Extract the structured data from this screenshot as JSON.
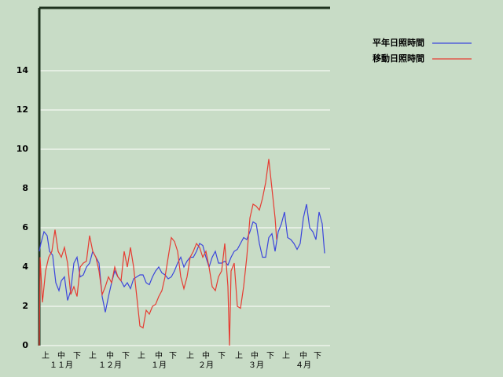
{
  "chart_data": {
    "type": "line",
    "xlim": [
      0,
      185
    ],
    "ylim": [
      0,
      17.2
    ],
    "yticks": [
      0,
      2,
      4,
      6,
      8,
      10,
      12,
      14
    ],
    "xticks": [
      {
        "value": 4,
        "label": "上"
      },
      {
        "value": 14,
        "label": "中"
      },
      {
        "value": 24,
        "label": "下"
      },
      {
        "value": 34,
        "label": "上"
      },
      {
        "value": 45,
        "label": "中"
      },
      {
        "value": 55,
        "label": "下"
      },
      {
        "value": 65,
        "label": "上"
      },
      {
        "value": 76,
        "label": "中"
      },
      {
        "value": 85,
        "label": "下"
      },
      {
        "value": 96,
        "label": "上"
      },
      {
        "value": 106,
        "label": "中"
      },
      {
        "value": 116,
        "label": "下"
      },
      {
        "value": 127,
        "label": "上"
      },
      {
        "value": 137,
        "label": "中"
      },
      {
        "value": 147,
        "label": "下"
      },
      {
        "value": 157,
        "label": "上"
      },
      {
        "value": 168,
        "label": "中"
      },
      {
        "value": 177,
        "label": "下"
      }
    ],
    "x_group_ticks": [
      {
        "value": 14,
        "label": "１１月"
      },
      {
        "value": 45,
        "label": "１２月"
      },
      {
        "value": 76,
        "label": "１月"
      },
      {
        "value": 106,
        "label": "２月"
      },
      {
        "value": 138,
        "label": "３月"
      },
      {
        "value": 168,
        "label": "４月"
      }
    ],
    "grid": true,
    "legend": "top-right",
    "series": [
      {
        "name": "平年日照時間",
        "color": "#3c46dc",
        "x": [
          0,
          1,
          3,
          5,
          6.5,
          8.5,
          10.5,
          12.5,
          14,
          16,
          18,
          20,
          22,
          24,
          26,
          28,
          30,
          32,
          34,
          36,
          38,
          40,
          42,
          44,
          46,
          48,
          50,
          52,
          54,
          56,
          58,
          60,
          62,
          64,
          66,
          68,
          70,
          72,
          74,
          76,
          78,
          80,
          82,
          84,
          86,
          88,
          90,
          92,
          94,
          96,
          98,
          100,
          102,
          104,
          106,
          108,
          110,
          112,
          114,
          116,
          118,
          120,
          122,
          124,
          126,
          128,
          130,
          132,
          134,
          136,
          138,
          140,
          142,
          144,
          146,
          148,
          150,
          152,
          154,
          156,
          158,
          160,
          162,
          164,
          166,
          168,
          170,
          172,
          174,
          176,
          178,
          180,
          181.5
        ],
        "values": [
          4.8,
          5.2,
          5.8,
          5.6,
          4.8,
          4.6,
          3.2,
          2.8,
          3.3,
          3.5,
          2.3,
          2.8,
          4.2,
          4.5,
          3.5,
          3.6,
          4.0,
          4.2,
          4.8,
          4.5,
          4.2,
          2.5,
          1.7,
          2.5,
          3.2,
          3.8,
          3.5,
          3.3,
          3.0,
          3.2,
          2.9,
          3.4,
          3.5,
          3.6,
          3.6,
          3.2,
          3.1,
          3.5,
          3.8,
          4.0,
          3.7,
          3.6,
          3.4,
          3.5,
          3.8,
          4.2,
          4.5,
          4.0,
          4.3,
          4.5,
          4.5,
          4.8,
          5.2,
          5.1,
          4.5,
          4.0,
          4.5,
          4.8,
          4.2,
          4.2,
          4.3,
          4.1,
          4.5,
          4.8,
          4.9,
          5.2,
          5.5,
          5.4,
          5.8,
          6.3,
          6.2,
          5.2,
          4.5,
          4.5,
          5.5,
          5.7,
          4.8,
          5.8,
          6.2,
          6.8,
          5.5,
          5.4,
          5.2,
          4.9,
          5.2,
          6.5,
          7.2,
          6.0,
          5.8,
          5.4,
          6.8,
          6.2,
          4.7
        ]
      },
      {
        "name": "移動日照時間",
        "color": "#e63c32",
        "x": [
          0,
          0.5,
          2,
          4,
          6,
          8,
          10,
          12,
          14,
          16,
          18,
          20,
          22,
          24,
          26,
          28,
          30,
          32,
          34,
          36,
          38,
          40,
          42,
          44,
          46,
          48,
          50,
          52,
          54,
          56,
          58,
          60,
          62,
          64,
          66,
          68,
          70,
          72,
          74,
          76,
          78,
          80,
          82,
          84,
          86,
          88,
          90,
          92,
          94,
          96,
          98,
          100,
          102,
          104,
          106,
          108,
          110,
          112,
          114,
          116,
          118,
          120,
          121,
          122,
          124,
          126,
          128,
          130,
          132,
          134,
          136,
          138,
          140,
          142,
          144,
          146,
          148,
          150,
          151
        ],
        "values": [
          0,
          4.5,
          2.2,
          3.8,
          4.5,
          4.8,
          5.9,
          4.8,
          4.5,
          5.0,
          4.2,
          2.6,
          3.0,
          2.5,
          4.0,
          4.2,
          4.3,
          5.6,
          4.8,
          4.5,
          3.8,
          2.6,
          3.0,
          3.5,
          3.2,
          4.0,
          3.5,
          3.3,
          4.8,
          4.0,
          5.0,
          4.0,
          2.5,
          1.0,
          0.9,
          1.8,
          1.6,
          2.0,
          2.1,
          2.5,
          2.8,
          3.5,
          4.5,
          5.5,
          5.3,
          4.8,
          3.5,
          2.9,
          3.5,
          4.5,
          4.8,
          5.2,
          5.0,
          4.5,
          4.8,
          4.0,
          3.0,
          2.8,
          3.5,
          3.8,
          5.2,
          3.0,
          0,
          3.8,
          4.2,
          2.0,
          1.9,
          3.0,
          4.5,
          6.5,
          7.2,
          7.1,
          6.9,
          7.5,
          8.3,
          9.5,
          8.0,
          6.5,
          5.4
        ]
      }
    ]
  }
}
